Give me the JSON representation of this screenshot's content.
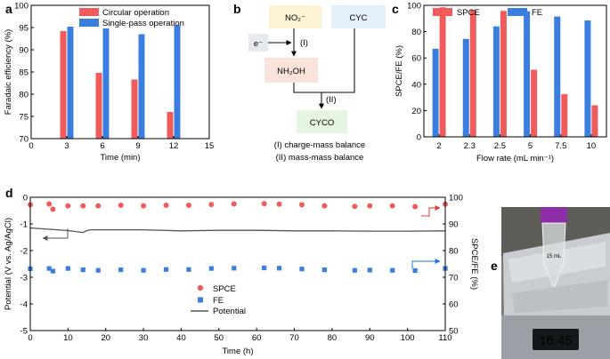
{
  "panels": {
    "a": {
      "label": "a"
    },
    "b": {
      "label": "b"
    },
    "c": {
      "label": "c"
    },
    "d": {
      "label": "d"
    },
    "e": {
      "label": "e"
    }
  },
  "diagram_b": {
    "nitrite": "NO₂⁻",
    "cyc": "CYC",
    "electron": "e⁻",
    "step1": "(I)",
    "nh2oh": "NH₂OH",
    "step2": "(II)",
    "cyco": "CYCO",
    "caption1": "(I) charge-mass balance",
    "caption2": "(II) mass-mass balance"
  },
  "photo_e": {
    "scale_reading": "16.45",
    "tube_label": "15 mL"
  },
  "colors": {
    "red": "#f05c5c",
    "blue": "#3a7fe0",
    "line": "#555555",
    "arrow_red": "#e53935",
    "arrow_blue": "#1e73e8"
  },
  "chart_data": [
    {
      "id": "a",
      "type": "bar",
      "title": "",
      "xlabel": "Time (min)",
      "ylabel": "Faradaic efficiency (%)",
      "xlim": [
        0,
        15
      ],
      "ylim": [
        70,
        100
      ],
      "xticks": [
        0,
        3,
        6,
        9,
        12,
        15
      ],
      "yticks": [
        70,
        75,
        80,
        85,
        90,
        95,
        100
      ],
      "x": [
        3,
        6,
        9,
        12
      ],
      "series": [
        {
          "name": "Circular operation",
          "values": [
            94.2,
            84.8,
            83.3,
            76.0
          ]
        },
        {
          "name": "Single-pass operation",
          "values": [
            95.2,
            94.8,
            93.5,
            95.5
          ]
        }
      ],
      "legend": "top-right"
    },
    {
      "id": "c",
      "type": "bar",
      "xlabel": "Flow rate (mL min⁻¹)",
      "ylabel": "SPCE/FE (%)",
      "ylim": [
        0,
        100
      ],
      "yticks": [
        0,
        20,
        40,
        60,
        80,
        100
      ],
      "categories": [
        "2",
        "2.3",
        "2.5",
        "5",
        "7.5",
        "10"
      ],
      "series": [
        {
          "name": "SPCE",
          "values": [
            98.5,
            96.5,
            95.8,
            51.0,
            32.5,
            24.0
          ]
        },
        {
          "name": "FE",
          "values": [
            67.0,
            74.5,
            84.0,
            95.5,
            91.5,
            88.5
          ]
        }
      ],
      "legend": "top"
    },
    {
      "id": "d",
      "type": "scatter",
      "xlabel": "Time (h)",
      "ylabel": "Potential (V vs. Ag/AgCl)",
      "y2label": "SPCE/FE (%)",
      "xlim": [
        0,
        110
      ],
      "ylim": [
        -5,
        0
      ],
      "y2lim": [
        50,
        100
      ],
      "xticks": [
        0,
        10,
        20,
        30,
        40,
        50,
        60,
        70,
        80,
        90,
        100,
        110
      ],
      "yticks": [
        0,
        -1,
        -2,
        -3,
        -4,
        -5
      ],
      "y2ticks": [
        50,
        60,
        70,
        80,
        90,
        100
      ],
      "legend": [
        "SPCE",
        "FE",
        "Potential"
      ],
      "legend_position": "bottom-left",
      "series": [
        {
          "name": "SPCE",
          "axis": "right",
          "x": [
            0,
            5,
            6,
            10,
            14,
            18,
            24,
            30,
            36,
            42,
            48,
            54,
            62,
            66,
            72,
            78,
            86,
            90,
            96,
            102,
            110
          ],
          "y": [
            97.2,
            97.5,
            95.5,
            96.8,
            96.8,
            96.8,
            97.0,
            96.8,
            97.0,
            97.0,
            97.3,
            97.5,
            97.6,
            97.4,
            97.2,
            96.8,
            96.6,
            96.8,
            96.8,
            96.5,
            97.4
          ]
        },
        {
          "name": "FE",
          "axis": "right",
          "x": [
            0,
            5,
            6,
            10,
            14,
            18,
            24,
            30,
            36,
            42,
            48,
            54,
            62,
            66,
            72,
            78,
            86,
            90,
            96,
            102,
            110
          ],
          "y": [
            73.2,
            73.3,
            72.3,
            73.3,
            72.8,
            72.6,
            72.8,
            72.6,
            72.9,
            72.9,
            73.3,
            73.4,
            73.5,
            73.4,
            73.1,
            72.8,
            72.6,
            72.7,
            72.6,
            72.5,
            73.3
          ]
        },
        {
          "name": "Potential",
          "axis": "left",
          "type": "line",
          "x": [
            0,
            5,
            10,
            14,
            15,
            16,
            20,
            30,
            40,
            50,
            60,
            70,
            80,
            90,
            100,
            110
          ],
          "y": [
            -1.15,
            -1.2,
            -1.25,
            -1.32,
            -1.25,
            -1.22,
            -1.22,
            -1.22,
            -1.26,
            -1.24,
            -1.24,
            -1.26,
            -1.26,
            -1.27,
            -1.27,
            -1.26
          ]
        }
      ]
    }
  ]
}
